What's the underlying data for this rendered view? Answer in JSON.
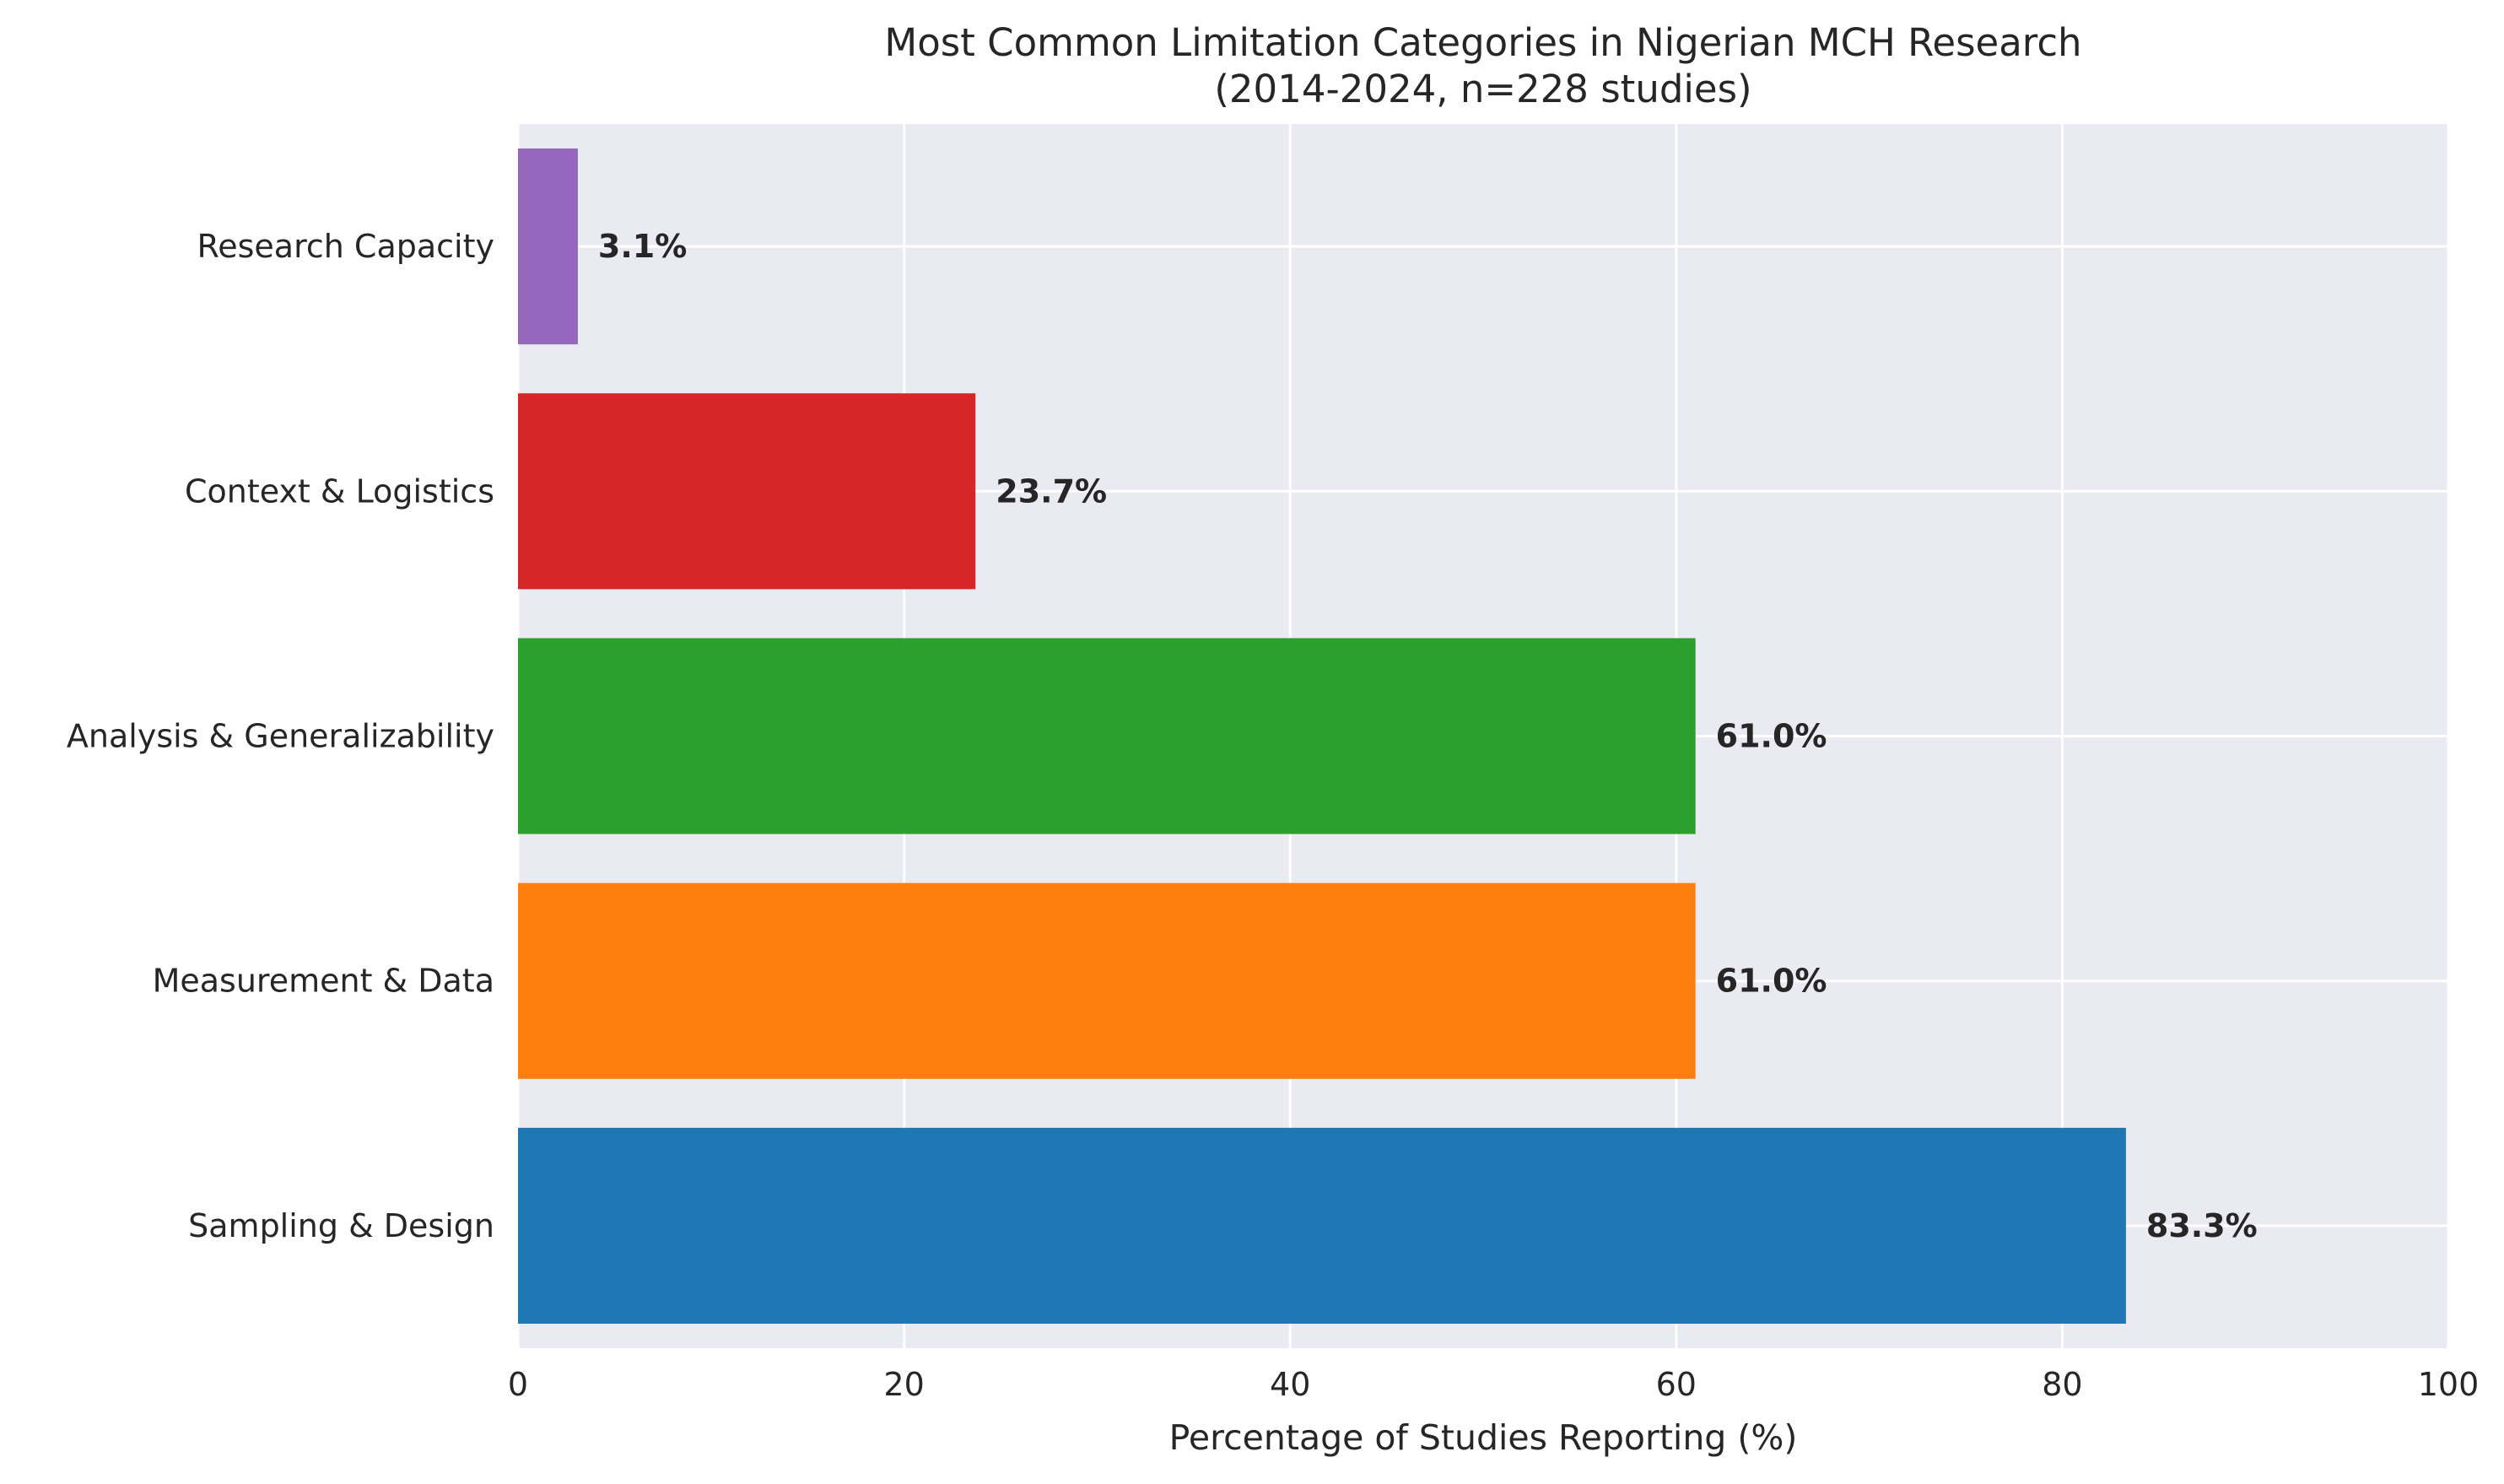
{
  "chart_data": {
    "type": "bar",
    "orientation": "horizontal",
    "title": "Most Common Limitation Categories in Nigerian MCH Research",
    "subtitle": "(2014-2024, n=228 studies)",
    "xlabel": "Percentage of Studies Reporting (%)",
    "ylabel": "",
    "xlim": [
      0,
      100
    ],
    "xticks": [
      0,
      20,
      40,
      60,
      80,
      100
    ],
    "grid": true,
    "categories": [
      "Sampling & Design",
      "Measurement & Data",
      "Analysis & Generalizability",
      "Context & Logistics",
      "Research Capacity"
    ],
    "values": [
      83.3,
      61.0,
      61.0,
      23.7,
      3.1
    ],
    "value_labels": [
      "83.3%",
      "61.0%",
      "61.0%",
      "23.7%",
      "3.1%"
    ],
    "colors": [
      "#1f77b4",
      "#ff7f0e",
      "#2ca02c",
      "#d62728",
      "#9467bd"
    ],
    "background": "#eaeaf2",
    "grid_color": "#ffffff"
  }
}
